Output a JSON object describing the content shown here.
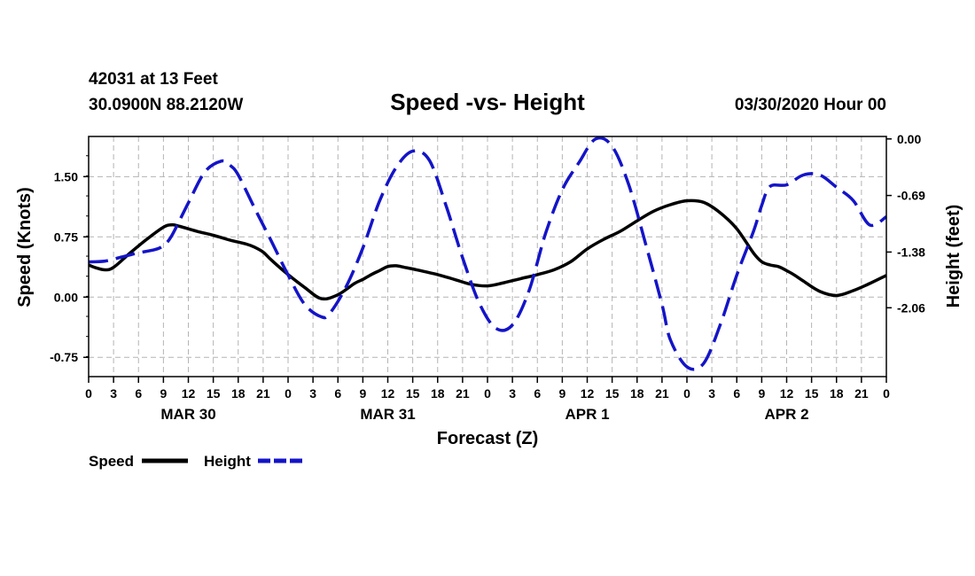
{
  "header": {
    "station_line": "42031 at 13 Feet",
    "location_line": "30.0900N 88.2120W",
    "title": "Speed -vs- Height",
    "datetime": "03/30/2020 Hour 00"
  },
  "colors": {
    "speed": "#000000",
    "height": "#1414c8",
    "grid": "#b4b4b4"
  },
  "legend": {
    "speed_label": "Speed",
    "height_label": "Height"
  },
  "chart_data": {
    "type": "line",
    "title": "Speed -vs- Height",
    "xlabel": "Forecast (Z)",
    "ylabel_left": "Speed (Knots)",
    "ylabel_right": "Height (feet)",
    "x_range_hours": [
      0,
      96
    ],
    "x_tick_step_hours": 3,
    "x_tick_labels": [
      "0",
      "3",
      "6",
      "9",
      "12",
      "15",
      "18",
      "21",
      "0",
      "3",
      "6",
      "9",
      "12",
      "15",
      "18",
      "21",
      "0",
      "3",
      "6",
      "9",
      "12",
      "15",
      "18",
      "21",
      "0",
      "3",
      "6",
      "9",
      "12",
      "15",
      "18",
      "21",
      "0"
    ],
    "date_labels": [
      {
        "label": "MAR 30",
        "hour": 12
      },
      {
        "label": "MAR 31",
        "hour": 36
      },
      {
        "label": "APR 1",
        "hour": 60
      },
      {
        "label": "APR 2",
        "hour": 84
      }
    ],
    "ylim_left": [
      -0.99,
      2.0
    ],
    "yticks_left": [
      {
        "value": 1.5,
        "label": "1.50"
      },
      {
        "value": 0.75,
        "label": "0.75"
      },
      {
        "value": 0.0,
        "label": "0.00"
      },
      {
        "value": -0.75,
        "label": "-0.75"
      }
    ],
    "ylim_right": [
      -2.9,
      0.03
    ],
    "yticks_right": [
      {
        "value": 0.0,
        "label": "0.00"
      },
      {
        "value": -0.69,
        "label": "-0.69"
      },
      {
        "value": -1.38,
        "label": "-1.38"
      },
      {
        "value": -2.06,
        "label": "-2.06"
      }
    ],
    "grid": true,
    "series": [
      {
        "name": "Speed",
        "axis": "left",
        "style": "solid",
        "hours": [
          0,
          1,
          2,
          3,
          5,
          7,
          9,
          10,
          11,
          13,
          15,
          17,
          19,
          20,
          21,
          22,
          24,
          26,
          28,
          30,
          32,
          33,
          34,
          35,
          36,
          37,
          38,
          39,
          42,
          44,
          46,
          48,
          50,
          52,
          54,
          56,
          58,
          60,
          62,
          64,
          66,
          68,
          70,
          72,
          74,
          76,
          78,
          80,
          81,
          82,
          83,
          84,
          85,
          86,
          88,
          90,
          92,
          94,
          96
        ],
        "values": [
          0.4,
          0.36,
          0.34,
          0.37,
          0.55,
          0.72,
          0.87,
          0.9,
          0.88,
          0.82,
          0.77,
          0.71,
          0.66,
          0.62,
          0.56,
          0.46,
          0.28,
          0.12,
          -0.02,
          0.03,
          0.17,
          0.22,
          0.28,
          0.33,
          0.38,
          0.39,
          0.37,
          0.35,
          0.28,
          0.22,
          0.16,
          0.14,
          0.18,
          0.23,
          0.28,
          0.34,
          0.44,
          0.6,
          0.72,
          0.82,
          0.95,
          1.07,
          1.15,
          1.2,
          1.18,
          1.05,
          0.85,
          0.55,
          0.44,
          0.4,
          0.38,
          0.33,
          0.27,
          0.2,
          0.07,
          0.02,
          0.08,
          0.17,
          0.27
        ]
      },
      {
        "name": "Height",
        "axis": "right",
        "style": "dashed",
        "hours": [
          0,
          2,
          4,
          6,
          8,
          9,
          10,
          12,
          14,
          16,
          17,
          18,
          20,
          22,
          24,
          26,
          28,
          29,
          31,
          33,
          35,
          37,
          39,
          41,
          43,
          45,
          47,
          49,
          51,
          53,
          55,
          57,
          59,
          61,
          63,
          65,
          67,
          69,
          70,
          72,
          74,
          76,
          78,
          80,
          81,
          82,
          84,
          86,
          88,
          90,
          92,
          94,
          96
        ],
        "values": [
          -1.5,
          -1.49,
          -1.44,
          -1.39,
          -1.35,
          -1.3,
          -1.18,
          -0.78,
          -0.4,
          -0.27,
          -0.32,
          -0.44,
          -0.85,
          -1.25,
          -1.66,
          -2.02,
          -2.17,
          -2.13,
          -1.8,
          -1.33,
          -0.76,
          -0.35,
          -0.15,
          -0.26,
          -0.81,
          -1.45,
          -2.0,
          -2.31,
          -2.27,
          -1.85,
          -1.15,
          -0.62,
          -0.29,
          0.0,
          -0.09,
          -0.56,
          -1.27,
          -2.02,
          -2.45,
          -2.78,
          -2.74,
          -2.27,
          -1.66,
          -1.13,
          -0.81,
          -0.58,
          -0.56,
          -0.44,
          -0.44,
          -0.59,
          -0.75,
          -1.05,
          -0.95
        ]
      }
    ]
  }
}
